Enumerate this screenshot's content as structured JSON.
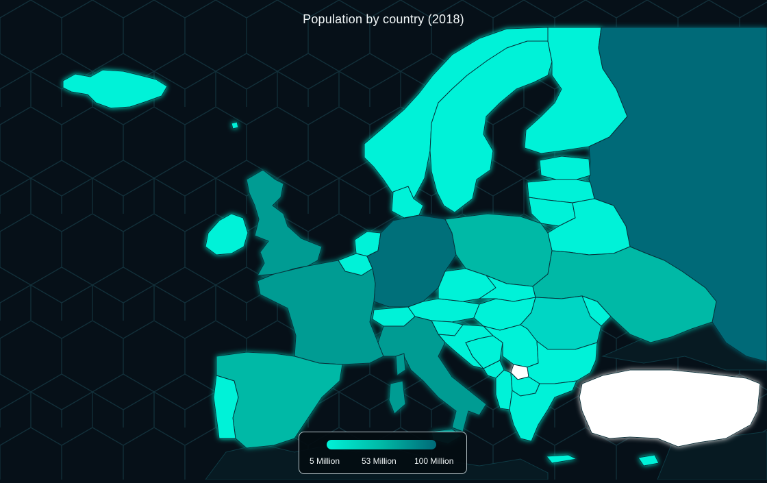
{
  "map": {
    "title": "Population by country (2018)",
    "colors": {
      "background": "#061018",
      "hex_grid": "#12303a",
      "border": "#07313a",
      "glow": "#34e6d8",
      "low": "#00f2d8",
      "mid": "#00b9a6",
      "high": "#006a78",
      "no_data": "#ffffff"
    },
    "legend": {
      "min_label": "5 Million",
      "mid_label": "53 Million",
      "max_label": "100 Million",
      "min_value": 5,
      "mid_value": 53,
      "max_value": 100
    }
  }
}
